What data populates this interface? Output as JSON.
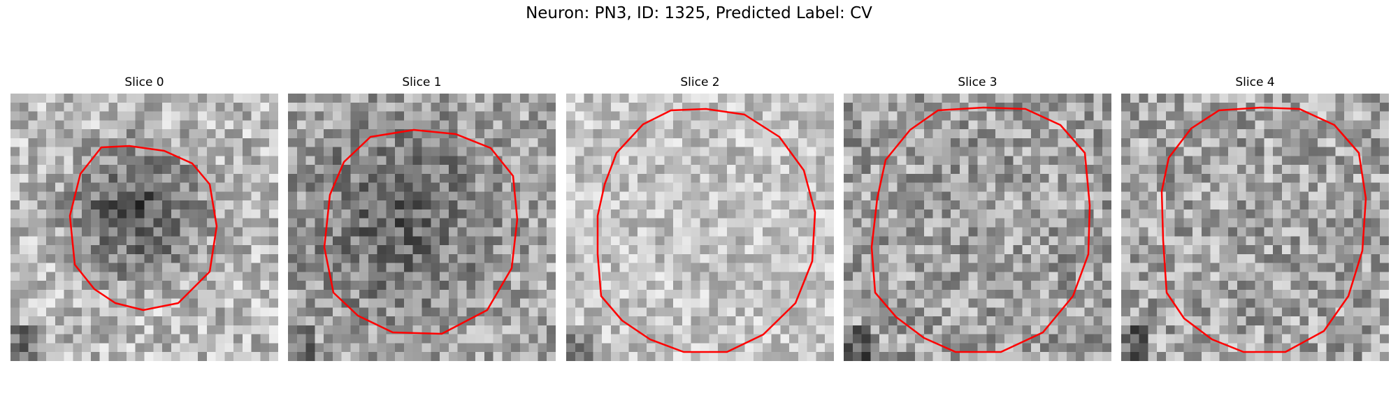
{
  "figure": {
    "title": "Neuron: PN3, ID: 1325, Predicted Label: CV"
  },
  "panels": [
    {
      "title": "Slice 0",
      "contour_color": "#ff0000"
    },
    {
      "title": "Slice 1",
      "contour_color": "#ff0000"
    },
    {
      "title": "Slice 2",
      "contour_color": "#ff0000"
    },
    {
      "title": "Slice 3",
      "contour_color": "#ff0000"
    },
    {
      "title": "Slice 4",
      "contour_color": "#ff0000"
    }
  ],
  "colormap": "grayscale"
}
